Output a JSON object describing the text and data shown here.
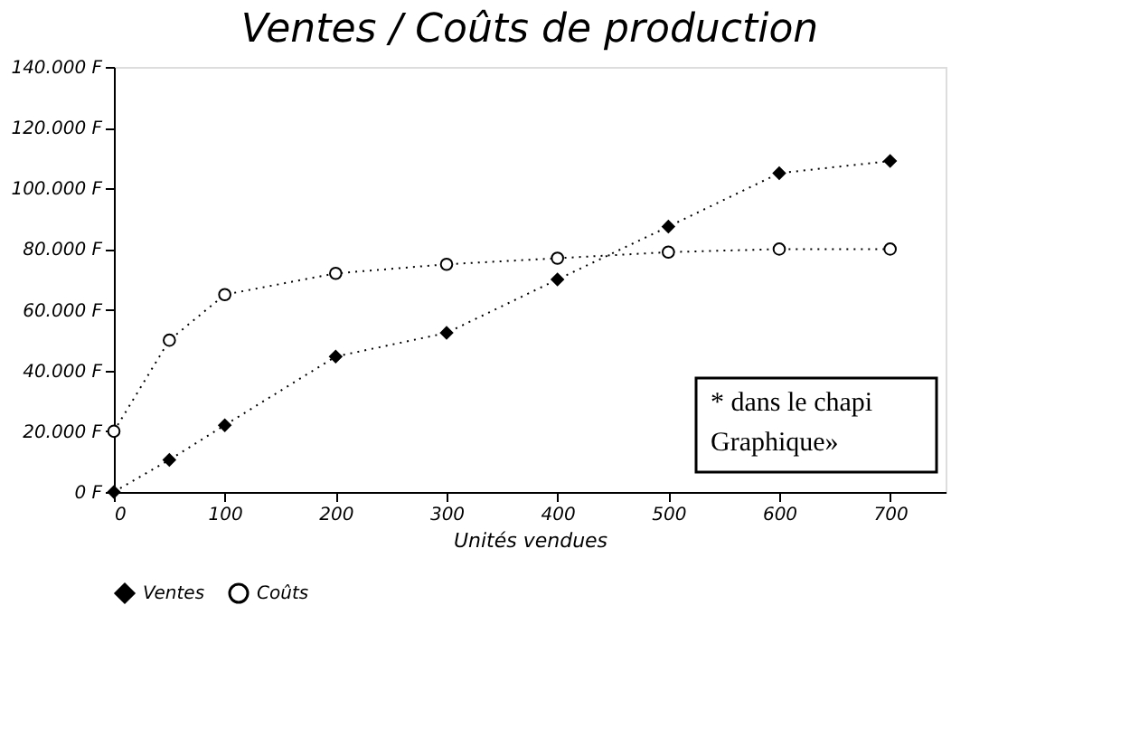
{
  "chart_data": {
    "type": "line",
    "title": "Ventes / Coûts de production",
    "xlabel": "Unités vendues",
    "x": [
      0,
      50,
      100,
      200,
      300,
      400,
      500,
      600,
      700
    ],
    "series": [
      {
        "name": "Ventes",
        "color": "#000000",
        "marker": "diamond",
        "line_style": "dotted",
        "values": [
          0,
          10600,
          22000,
          44600,
          52400,
          70000,
          87400,
          105000,
          109000
        ]
      },
      {
        "name": "Coûts",
        "color": "#000000",
        "marker": "circle",
        "line_style": "dotted",
        "values": [
          20000,
          50000,
          65000,
          72000,
          75000,
          77000,
          79000,
          80000,
          80000
        ]
      }
    ],
    "xlim": [
      0,
      750
    ],
    "xticks": [
      0,
      100,
      200,
      300,
      400,
      500,
      600,
      700
    ],
    "ylim": [
      0,
      140000
    ],
    "yticks": [
      {
        "value": 0,
        "label": "0 F"
      },
      {
        "value": 20000,
        "label": "20.000 F"
      },
      {
        "value": 40000,
        "label": "40.000 F"
      },
      {
        "value": 60000,
        "label": "60.000 F"
      },
      {
        "value": 80000,
        "label": "80.000 F"
      },
      {
        "value": 100000,
        "label": "100.000 F"
      },
      {
        "value": 120000,
        "label": "120.000 F"
      },
      {
        "value": 140000,
        "label": "140.000 F"
      }
    ],
    "grid": false,
    "legend": "bottom",
    "annotations": [
      "* dans le chapi\nGraphique»"
    ]
  }
}
